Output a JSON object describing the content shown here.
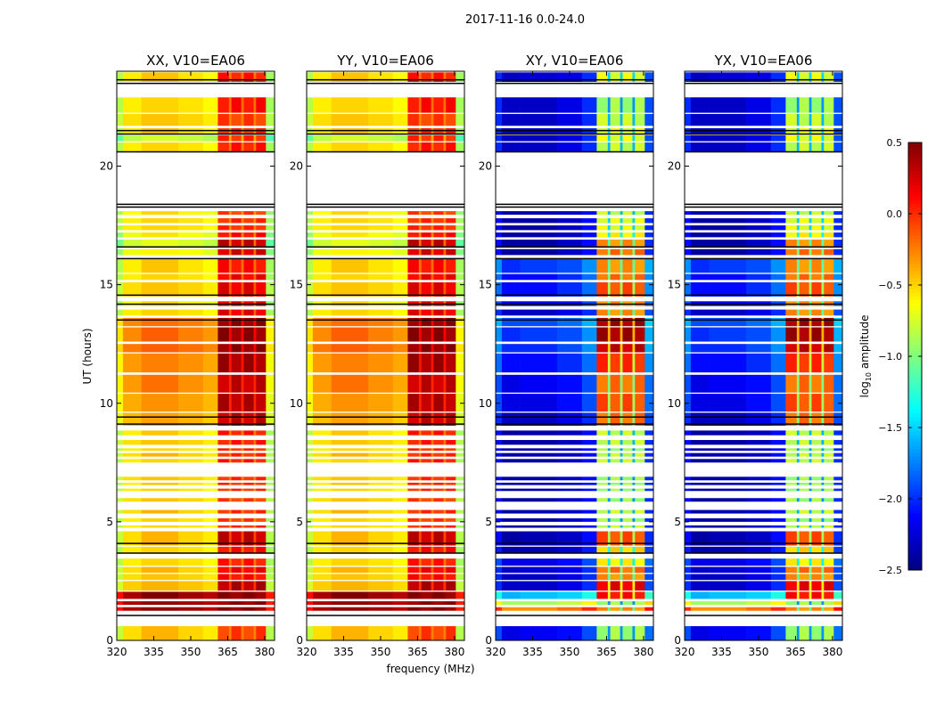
{
  "chart_data": {
    "type": "heatmap",
    "title": "2017-11-16 0.0-24.0",
    "xlabel": "frequency (MHz)",
    "ylabel": "UT (hours)",
    "xlim": [
      320,
      384
    ],
    "ylim": [
      0,
      24
    ],
    "xticks": [
      "320",
      "335",
      "350",
      "365",
      "380"
    ],
    "xtick_values": [
      320,
      335,
      350,
      365,
      380
    ],
    "yticks": [
      "0",
      "5",
      "10",
      "15",
      "20"
    ],
    "ytick_values": [
      0,
      5,
      10,
      15,
      20
    ],
    "colorbar": {
      "label_prefix": "log",
      "label_sub": "10",
      "label_suffix": " amplitude",
      "range": [
        -2.5,
        0.5
      ],
      "ticks": [
        "0.5",
        "0.0",
        "−0.5",
        "−1.0",
        "−1.5",
        "−2.0",
        "−2.5"
      ],
      "tick_values": [
        0.5,
        0.0,
        -0.5,
        -1.0,
        -1.5,
        -2.0,
        -2.5
      ],
      "colormap": "jet"
    },
    "panels": [
      {
        "title": "XX, V10=EA06",
        "kind": "parallel"
      },
      {
        "title": "YY, V10=EA06",
        "kind": "parallel"
      },
      {
        "title": "XY, V10=EA06",
        "kind": "cross"
      },
      {
        "title": "YX, V10=EA06",
        "kind": "cross"
      }
    ],
    "band_subbands_mhz": [
      [
        361,
        365.5
      ],
      [
        366.5,
        370.5
      ],
      [
        371.5,
        375.5
      ],
      [
        376.5,
        380.5
      ]
    ],
    "row_columns": [
      "t_start_h",
      "t_end_h",
      "parallel_base",
      "parallel_band",
      "cross_base",
      "cross_band"
    ],
    "rows": [
      [
        0.0,
        0.6,
        -0.45,
        -0.05,
        -2.2,
        -0.9
      ],
      [
        1.25,
        1.4,
        0.45,
        0.45,
        -0.3,
        -0.3
      ],
      [
        1.5,
        1.65,
        0.45,
        0.45,
        -0.9,
        -0.9
      ],
      [
        1.75,
        2.05,
        0.45,
        0.45,
        -1.6,
        0.1
      ],
      [
        2.1,
        2.5,
        -0.4,
        0.35,
        -2.3,
        0.2
      ],
      [
        2.55,
        2.8,
        -0.45,
        0.1,
        -2.3,
        -0.3
      ],
      [
        2.85,
        3.1,
        -0.45,
        0.15,
        -2.3,
        -0.2
      ],
      [
        3.15,
        3.45,
        -0.5,
        0.05,
        -2.2,
        -0.6
      ],
      [
        3.7,
        3.95,
        -0.5,
        0.1,
        -2.35,
        -0.5
      ],
      [
        4.0,
        4.6,
        -0.45,
        0.3,
        -2.4,
        -0.1
      ],
      [
        4.75,
        4.85,
        -0.5,
        0.0,
        -2.4,
        -0.8
      ],
      [
        5.0,
        5.15,
        -0.5,
        -0.05,
        -2.4,
        -0.9
      ],
      [
        5.35,
        5.5,
        -0.45,
        0.0,
        -2.4,
        -0.8
      ],
      [
        5.85,
        6.0,
        -0.45,
        -0.05,
        -2.4,
        -0.9
      ],
      [
        6.3,
        6.4,
        -0.5,
        0.0,
        -2.4,
        -0.9
      ],
      [
        6.55,
        6.65,
        -0.5,
        0.0,
        -2.4,
        -0.9
      ],
      [
        6.75,
        6.9,
        -0.45,
        0.0,
        -2.4,
        -0.9
      ],
      [
        7.5,
        7.65,
        -0.5,
        0.05,
        -2.4,
        -0.8
      ],
      [
        7.75,
        7.9,
        -0.45,
        0.0,
        -2.4,
        -0.8
      ],
      [
        8.0,
        8.1,
        -0.5,
        0.0,
        -2.4,
        -0.9
      ],
      [
        8.25,
        8.45,
        -0.45,
        0.05,
        -2.4,
        -0.8
      ],
      [
        8.65,
        8.85,
        -0.5,
        0.05,
        -2.4,
        -0.8
      ],
      [
        9.05,
        9.6,
        -0.35,
        0.3,
        -2.3,
        -0.2
      ],
      [
        9.65,
        10.4,
        -0.3,
        0.35,
        -2.2,
        -0.1
      ],
      [
        10.45,
        11.2,
        -0.25,
        0.3,
        -2.2,
        -0.2
      ],
      [
        11.3,
        12.1,
        -0.25,
        0.4,
        -2.1,
        0.0
      ],
      [
        12.15,
        12.5,
        -0.15,
        0.45,
        -2.0,
        0.3
      ],
      [
        12.6,
        13.2,
        -0.2,
        0.45,
        -2.0,
        0.4
      ],
      [
        13.25,
        13.6,
        -0.2,
        0.45,
        -1.9,
        0.4
      ],
      [
        13.7,
        13.95,
        -0.5,
        0.2,
        -2.3,
        -0.3
      ],
      [
        14.1,
        14.3,
        -0.55,
        0.2,
        -2.2,
        -0.3
      ],
      [
        14.5,
        15.1,
        -0.45,
        0.2,
        -2.1,
        -0.1
      ],
      [
        15.2,
        15.45,
        -0.5,
        0.15,
        -2.1,
        -0.2
      ],
      [
        15.5,
        16.1,
        -0.5,
        0.1,
        -2.0,
        -0.3
      ],
      [
        16.25,
        16.5,
        -0.6,
        0.25,
        -2.4,
        -0.2
      ],
      [
        16.6,
        16.9,
        -0.7,
        0.3,
        -2.4,
        -0.3
      ],
      [
        17.0,
        17.2,
        -0.6,
        0.1,
        -2.4,
        -0.6
      ],
      [
        17.3,
        17.5,
        -0.5,
        0.0,
        -2.4,
        -0.7
      ],
      [
        17.6,
        17.8,
        -0.5,
        0.0,
        -2.4,
        -0.7
      ],
      [
        17.95,
        18.1,
        -0.55,
        -0.05,
        -2.4,
        -0.8
      ],
      [
        20.6,
        21.0,
        -0.5,
        0.05,
        -2.3,
        -0.8
      ],
      [
        21.05,
        21.3,
        -0.75,
        0.0,
        -2.3,
        -0.7
      ],
      [
        21.35,
        21.6,
        -0.5,
        0.0,
        -2.3,
        -0.7
      ],
      [
        21.7,
        22.2,
        -0.45,
        -0.05,
        -2.3,
        -0.8
      ],
      [
        22.25,
        22.9,
        -0.5,
        0.1,
        -2.3,
        -0.9
      ],
      [
        23.55,
        23.95,
        -0.5,
        0.05,
        -2.3,
        -0.7
      ]
    ],
    "separator_lines_h": [
      1.05,
      3.68,
      4.09,
      9.12,
      9.42,
      13.51,
      14.18,
      14.56,
      16.1,
      16.59,
      18.27,
      18.39,
      20.6,
      21.35,
      21.5,
      23.49,
      23.64
    ]
  }
}
